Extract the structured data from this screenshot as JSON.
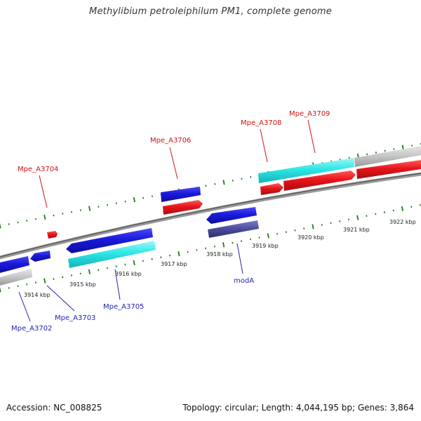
{
  "title": "Methylibium petroleiphilum PM1, complete genome",
  "footer": {
    "accession": "Accession: NC_008825",
    "summary": "Topology: circular; Length: 4,044,195 bp; Genes: 3,864"
  },
  "colors": {
    "forward_gene": "#e8141b",
    "reverse_gene": "#1a1adc",
    "cyan_gene": "#2ee6e6",
    "grey_gene": "#c4c4c4",
    "slate_gene": "#4b4c9a",
    "tick": "#1e7a1e",
    "backbone": "#777777",
    "forward_label": "#d11414",
    "reverse_label": "#2323b4"
  },
  "scale_labels": [
    "3914 kbp",
    "3915 kbp",
    "3916 kbp",
    "3917 kbp",
    "3918 kbp",
    "3919 kbp",
    "3920 kbp",
    "3921 kbp",
    "3922 kbp"
  ],
  "gene_labels": {
    "top": [
      "Mpe_A3704",
      "Mpe_A3706",
      "Mpe_A3708",
      "Mpe_A3709"
    ],
    "bottom": [
      "Mpe_A3702",
      "Mpe_A3703",
      "Mpe_A3705",
      "modA"
    ]
  }
}
